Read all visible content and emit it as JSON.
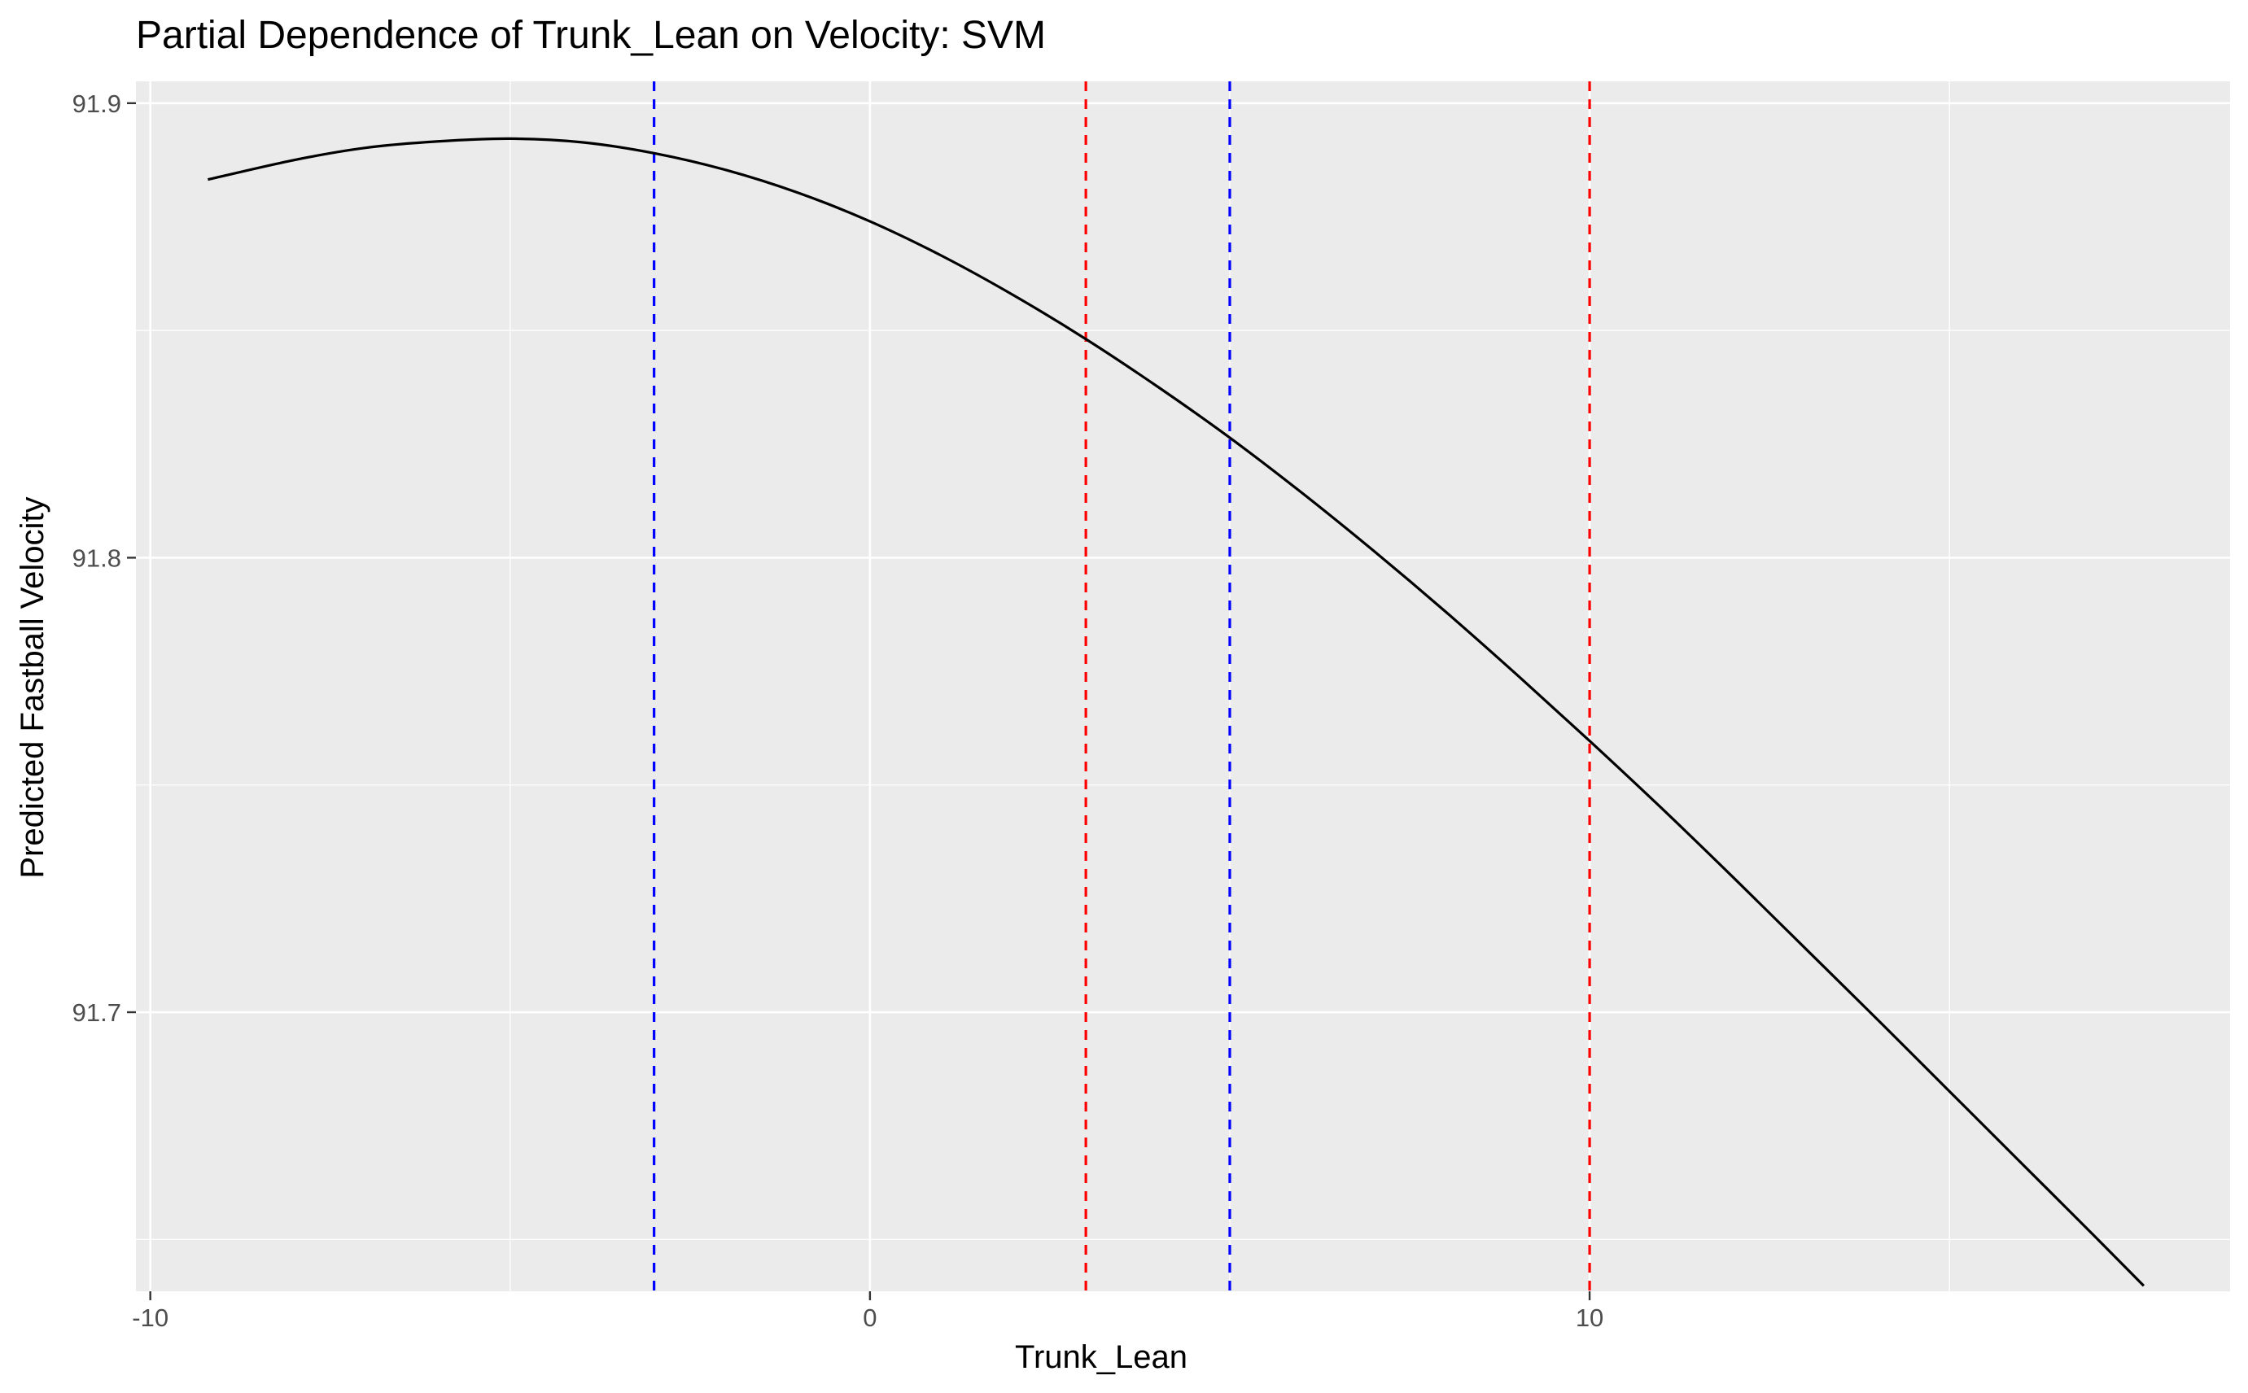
{
  "chart_data": {
    "type": "line",
    "title": "Partial Dependence of Trunk_Lean on Velocity: SVM",
    "xlabel": "Trunk_Lean",
    "ylabel": "Predicted Fastball Velocity",
    "xlim": [
      -10.2,
      18.9
    ],
    "ylim": [
      91.6386,
      91.9048
    ],
    "x_ticks": [
      -10,
      0,
      10
    ],
    "x_tick_labels": [
      "-10",
      "0",
      "10"
    ],
    "y_ticks": [
      91.7,
      91.8,
      91.9
    ],
    "y_tick_labels": [
      "91.7",
      "91.8",
      "91.9"
    ],
    "grid": true,
    "panel_background": "#ebebeb",
    "series": [
      {
        "color": "#000000",
        "x": [
          -9.2,
          -8,
          -7,
          -6,
          -5,
          -4,
          -3,
          -2,
          -1,
          0,
          1,
          2,
          3,
          4,
          5,
          6,
          7,
          8,
          9,
          10,
          11,
          12,
          13,
          14,
          15,
          16,
          17,
          17.7
        ],
        "y": [
          91.8832,
          91.8875,
          91.8902,
          91.8916,
          91.8922,
          91.8914,
          91.889,
          91.8853,
          91.8803,
          91.874,
          91.8664,
          91.8577,
          91.8481,
          91.8376,
          91.8264,
          91.8143,
          91.8015,
          91.7881,
          91.7741,
          91.7597,
          91.7449,
          91.7296,
          91.714,
          91.6984,
          91.6826,
          91.6668,
          91.651,
          91.6398
        ]
      }
    ],
    "reference_lines": [
      {
        "x": -3.0,
        "color": "#0000ff",
        "style": "dashed"
      },
      {
        "x": 3.0,
        "color": "#ff0000",
        "style": "dashed"
      },
      {
        "x": 5.0,
        "color": "#0000ff",
        "style": "dashed"
      },
      {
        "x": 10.0,
        "color": "#ff0000",
        "style": "dashed"
      }
    ]
  }
}
